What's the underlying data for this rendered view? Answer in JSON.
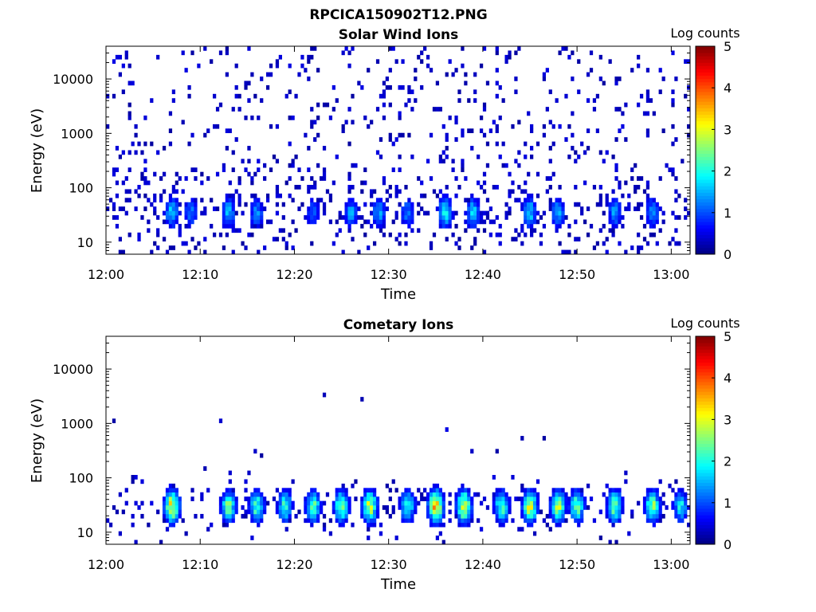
{
  "figure_title": "RPCICA150902T12.PNG",
  "chart_data": [
    {
      "type": "heatmap",
      "title": "Solar Wind Ions",
      "xlabel": "Time",
      "ylabel": "Energy (eV)",
      "x_range": [
        "12:00",
        "13:02"
      ],
      "y_range": [
        6,
        40000
      ],
      "y_scale": "log",
      "x_ticks": [
        "12:00",
        "12:10",
        "12:20",
        "12:30",
        "12:40",
        "12:50",
        "13:00"
      ],
      "y_ticks": [
        "10",
        "100",
        "1000",
        "10000"
      ],
      "y_tick_values": [
        10,
        100,
        1000,
        10000
      ],
      "colorbar": {
        "label": "Log counts",
        "range": [
          0,
          5
        ],
        "ticks": [
          "0",
          "1",
          "2",
          "3",
          "4",
          "5"
        ],
        "colormap": "jet"
      },
      "background_counts": 0.3,
      "peak_energy_eV": 35,
      "bursts": [
        {
          "time": "12:07",
          "log_counts": 1.8
        },
        {
          "time": "12:09",
          "log_counts": 1.3
        },
        {
          "time": "12:13",
          "log_counts": 1.7
        },
        {
          "time": "12:16",
          "log_counts": 1.4
        },
        {
          "time": "12:22",
          "log_counts": 1.2
        },
        {
          "time": "12:26",
          "log_counts": 1.5
        },
        {
          "time": "12:29",
          "log_counts": 1.6
        },
        {
          "time": "12:32",
          "log_counts": 1.4
        },
        {
          "time": "12:36",
          "log_counts": 2.0
        },
        {
          "time": "12:39",
          "log_counts": 1.8
        },
        {
          "time": "12:45",
          "log_counts": 1.8
        },
        {
          "time": "12:48",
          "log_counts": 1.6
        },
        {
          "time": "12:54",
          "log_counts": 1.5
        },
        {
          "time": "12:58",
          "log_counts": 1.5
        }
      ],
      "grid": false
    },
    {
      "type": "heatmap",
      "title": "Cometary Ions",
      "xlabel": "Time",
      "ylabel": "Energy (eV)",
      "x_range": [
        "12:00",
        "13:02"
      ],
      "y_range": [
        6,
        40000
      ],
      "y_scale": "log",
      "x_ticks": [
        "12:00",
        "12:10",
        "12:20",
        "12:30",
        "12:40",
        "12:50",
        "13:00"
      ],
      "y_ticks": [
        "10",
        "100",
        "1000",
        "10000"
      ],
      "y_tick_values": [
        10,
        100,
        1000,
        10000
      ],
      "colorbar": {
        "label": "Log counts",
        "range": [
          0,
          5
        ],
        "ticks": [
          "0",
          "1",
          "2",
          "3",
          "4",
          "5"
        ],
        "colormap": "jet"
      },
      "background_counts": 0.02,
      "peak_energy_eV": 30,
      "bursts": [
        {
          "time": "12:07",
          "log_counts": 3.5
        },
        {
          "time": "12:13",
          "log_counts": 2.6
        },
        {
          "time": "12:16",
          "log_counts": 2.5
        },
        {
          "time": "12:19",
          "log_counts": 2.3
        },
        {
          "time": "12:22",
          "log_counts": 2.5
        },
        {
          "time": "12:25",
          "log_counts": 2.8
        },
        {
          "time": "12:28",
          "log_counts": 3.2
        },
        {
          "time": "12:32",
          "log_counts": 2.4
        },
        {
          "time": "12:35",
          "log_counts": 3.8
        },
        {
          "time": "12:38",
          "log_counts": 3.5
        },
        {
          "time": "12:42",
          "log_counts": 2.5
        },
        {
          "time": "12:45",
          "log_counts": 3.2
        },
        {
          "time": "12:48",
          "log_counts": 3.0
        },
        {
          "time": "12:50",
          "log_counts": 2.6
        },
        {
          "time": "12:54",
          "log_counts": 2.7
        },
        {
          "time": "12:58",
          "log_counts": 2.8
        },
        {
          "time": "13:01",
          "log_counts": 2.0
        }
      ],
      "grid": false
    }
  ]
}
